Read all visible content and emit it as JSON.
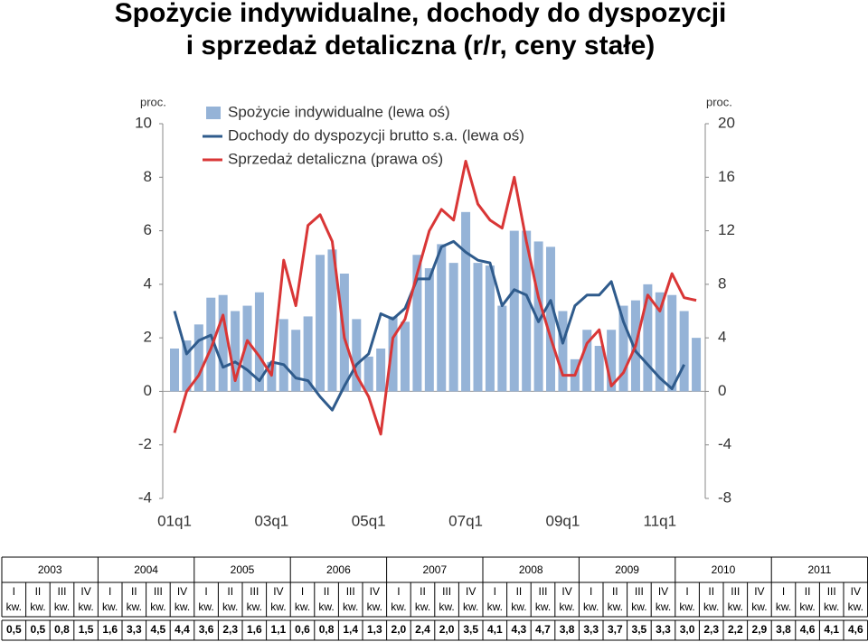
{
  "chart_data": {
    "type": "bar-line",
    "title": [
      "Spożycie indywidualne, dochody do dyspozycji",
      "i sprzedaż detaliczna (r/r, ceny stałe)"
    ],
    "y_label": "proc.",
    "y2_label": "proc.",
    "categories": [
      "01q1",
      null,
      null,
      null,
      null,
      null,
      null,
      null,
      "03q1",
      null,
      null,
      null,
      null,
      null,
      null,
      null,
      "05q1",
      null,
      null,
      null,
      null,
      null,
      null,
      null,
      "07q1",
      null,
      null,
      null,
      null,
      null,
      null,
      null,
      "09q1",
      null,
      null,
      null,
      null,
      null,
      null,
      null,
      "11q1",
      null,
      null,
      null
    ],
    "series": [
      {
        "name": "Spożycie indywidualne (lewa oś)",
        "type": "bar",
        "color": "#95b3d7",
        "values": [
          1.6,
          1.9,
          2.5,
          3.5,
          3.6,
          3.0,
          3.2,
          3.7,
          1.1,
          2.7,
          2.3,
          2.8,
          5.1,
          5.3,
          4.4,
          2.7,
          1.3,
          1.6,
          2.8,
          2.6,
          5.1,
          4.6,
          5.5,
          4.8,
          6.7,
          4.8,
          4.7,
          3.2,
          6.0,
          6.0,
          5.6,
          5.4,
          3.0,
          1.2,
          2.3,
          1.7,
          2.3,
          3.2,
          3.4,
          4.0,
          3.7,
          3.6,
          3.0,
          2.0
        ]
      },
      {
        "name": "Dochody do dyspozycji brutto s.a. (lewa oś)",
        "type": "line",
        "color": "#2f5b8c",
        "values": [
          3.0,
          1.4,
          1.9,
          2.1,
          0.9,
          1.1,
          0.8,
          0.4,
          1.1,
          1.0,
          0.5,
          0.4,
          -0.2,
          -0.7,
          0.2,
          1.0,
          1.4,
          2.9,
          2.7,
          3.1,
          4.2,
          4.2,
          5.4,
          5.6,
          5.2,
          4.9,
          4.8,
          3.2,
          3.8,
          3.6,
          2.6,
          3.4,
          1.8,
          3.2,
          3.6,
          3.6,
          4.1,
          2.6,
          1.5,
          1.0,
          0.5,
          0.1,
          1.0,
          null
        ]
      },
      {
        "name": "Sprzedaż detaliczna (prawa oś)",
        "type": "line",
        "axis": "y2",
        "color": "#d93636",
        "values": [
          -3.1,
          0.0,
          1.2,
          3.2,
          5.7,
          0.8,
          3.8,
          2.6,
          1.2,
          9.8,
          6.4,
          12.4,
          13.2,
          11.2,
          4.0,
          1.2,
          -0.4,
          -3.2,
          4.0,
          5.4,
          8.8,
          12.0,
          13.6,
          12.8,
          17.2,
          14.0,
          12.8,
          12.2,
          16.0,
          11.2,
          7.0,
          4.0,
          1.2,
          1.2,
          3.6,
          4.6,
          0.4,
          1.4,
          3.4,
          7.2,
          6.0,
          8.8,
          7.0,
          6.8
        ]
      }
    ],
    "ylim": [
      -4,
      10
    ],
    "yticks": [
      -4,
      -2,
      0,
      2,
      4,
      6,
      8,
      10
    ],
    "y2lim": [
      -8,
      20
    ],
    "y2ticks": [
      -8,
      -4,
      0,
      4,
      8,
      12,
      16,
      20
    ],
    "legend": "top-left"
  },
  "table": {
    "years": [
      "2003",
      "2004",
      "2005",
      "2006",
      "2007",
      "2008",
      "2009",
      "2010",
      "2011"
    ],
    "quarters": [
      "I",
      "II",
      "III",
      "IV"
    ],
    "unit": "kw.",
    "values": [
      {
        "text": "0,5",
        "color": "#000000"
      },
      {
        "text": "0,5",
        "color": "#000000"
      },
      {
        "text": "0,8",
        "color": "#000000"
      },
      {
        "text": "1,5",
        "color": "#000000"
      },
      {
        "text": "1,6",
        "color": "#000000"
      },
      {
        "text": "3,3",
        "color": "#000000"
      },
      {
        "text": "4,5",
        "color": "#e00000"
      },
      {
        "text": "4,4",
        "color": "#e00000"
      },
      {
        "text": "3,6",
        "color": "#000000"
      },
      {
        "text": "2,3",
        "color": "#000000"
      },
      {
        "text": "1,6",
        "color": "#000000"
      },
      {
        "text": "1,1",
        "color": "#000000"
      },
      {
        "text": "0,6",
        "color": "#000000"
      },
      {
        "text": "0,8",
        "color": "#000000"
      },
      {
        "text": "1,4",
        "color": "#000000"
      },
      {
        "text": "1,3",
        "color": "#000000"
      },
      {
        "text": "2,0",
        "color": "#000000"
      },
      {
        "text": "2,4",
        "color": "#000000"
      },
      {
        "text": "2,0",
        "color": "#000000"
      },
      {
        "text": "3,5",
        "color": "#e00000"
      },
      {
        "text": "4,1",
        "color": "#e00000"
      },
      {
        "text": "4,3",
        "color": "#e00000"
      },
      {
        "text": "4,7",
        "color": "#e00000"
      },
      {
        "text": "3,8",
        "color": "#000000"
      },
      {
        "text": "3,3",
        "color": "#000000"
      },
      {
        "text": "3,7",
        "color": "#000000"
      },
      {
        "text": "3,5",
        "color": "#000000"
      },
      {
        "text": "3,3",
        "color": "#000000"
      },
      {
        "text": "3,0",
        "color": "#000000"
      },
      {
        "text": "2,3",
        "color": "#000000"
      },
      {
        "text": "2,2",
        "color": "#000000"
      },
      {
        "text": "2,9",
        "color": "#000000"
      },
      {
        "text": "3,8",
        "color": "#e00000"
      },
      {
        "text": "4,6",
        "color": "#e00000"
      },
      {
        "text": "4,1",
        "color": "#e00000"
      },
      {
        "text": "4,6",
        "color": "#e00000"
      }
    ]
  }
}
